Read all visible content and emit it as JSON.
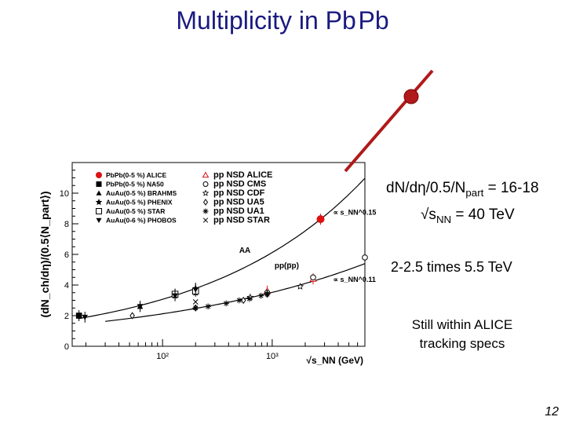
{
  "slide": {
    "title": "Multiplicity in Pb Pb",
    "page_number": "12",
    "note_line1_pre": "dN/dη/0.5/N",
    "note_line1_sub": "part",
    "note_line1_post": " = 16-18",
    "note_line2_pre": "√s",
    "note_line2_sub": "NN",
    "note_line2_post": " = 40 TeV",
    "note_range": "2-2.5 times 5.5 TeV",
    "note_specs": "Still within ALICE tracking specs",
    "accent_color": "#b01a1a",
    "title_color": "#1a1a80"
  },
  "chart_data": {
    "type": "scatter",
    "ylabel": "(dN_ch/dη)/(0.5⟨N_part⟩)",
    "xlabel": "√s_NN (GeV)",
    "xscale": "log",
    "xlim": [
      15,
      7000
    ],
    "ylim": [
      0,
      12
    ],
    "yticks": [
      "0",
      "2",
      "4",
      "6",
      "8",
      "10"
    ],
    "xticks": [
      "10²",
      "10³"
    ],
    "annotations": [
      "AA",
      "pp(p̅p)",
      "∝ s_NN^0.15",
      "∝ s_NN^0.11"
    ],
    "legend_left": [
      {
        "label": "PbPb(0-5 %) ALICE",
        "marker": "circle-filled",
        "color": "#dd1111"
      },
      {
        "label": "PbPb(0-5 %) NA50",
        "marker": "square-filled",
        "color": "#000000"
      },
      {
        "label": "AuAu(0-5 %) BRAHMS",
        "marker": "triangle-up-filled",
        "color": "#000000"
      },
      {
        "label": "AuAu(0-5 %) PHENIX",
        "marker": "star-filled",
        "color": "#000000"
      },
      {
        "label": "AuAu(0-5 %) STAR",
        "marker": "square-open",
        "color": "#000000"
      },
      {
        "label": "AuAu(0-6 %) PHOBOS",
        "marker": "triangle-down-filled",
        "color": "#000000"
      }
    ],
    "legend_right": [
      {
        "label": "pp NSD ALICE",
        "marker": "triangle-up-open",
        "color": "#dd1111"
      },
      {
        "label": "pp NSD CMS",
        "marker": "circle-open",
        "color": "#000000"
      },
      {
        "label": "pp NSD CDF",
        "marker": "star-open",
        "color": "#000000"
      },
      {
        "label": "pp NSD UA5",
        "marker": "diamond-open",
        "color": "#000000"
      },
      {
        "label": "pp NSD UA1",
        "marker": "asterisk",
        "color": "#000000"
      },
      {
        "label": "pp NSD STAR",
        "marker": "cross",
        "color": "#000000"
      }
    ],
    "series": [
      {
        "name": "PbPb(0-5 %) ALICE",
        "marker": "circle-filled",
        "color": "#dd1111",
        "x": [
          2760
        ],
        "y": [
          8.3
        ]
      },
      {
        "name": "PbPb(0-5 %) NA50",
        "marker": "square-filled",
        "color": "#000000",
        "x": [
          17.3
        ],
        "y": [
          2.0
        ]
      },
      {
        "name": "AuAu(0-5 %) BRAHMS",
        "marker": "triangle-up-filled",
        "color": "#000000",
        "x": [
          62.4,
          130,
          200
        ],
        "y": [
          2.6,
          3.4,
          3.8
        ]
      },
      {
        "name": "AuAu(0-5 %) PHENIX",
        "marker": "star-filled",
        "color": "#000000",
        "x": [
          130,
          200
        ],
        "y": [
          3.3,
          3.5
        ]
      },
      {
        "name": "AuAu(0-5 %) STAR",
        "marker": "square-open",
        "color": "#000000",
        "x": [
          130,
          200
        ],
        "y": [
          3.4,
          3.6
        ]
      },
      {
        "name": "AuAu(0-6 %) PHOBOS",
        "marker": "triangle-down-filled",
        "color": "#000000",
        "x": [
          19.6,
          62.4,
          130,
          200
        ],
        "y": [
          1.9,
          2.6,
          3.3,
          3.7
        ]
      },
      {
        "name": "pp NSD ALICE",
        "marker": "triangle-up-open",
        "color": "#dd1111",
        "x": [
          900,
          2360
        ],
        "y": [
          3.6,
          4.4
        ]
      },
      {
        "name": "pp NSD CMS",
        "marker": "circle-open",
        "color": "#000000",
        "x": [
          900,
          2360,
          7000
        ],
        "y": [
          3.5,
          4.5,
          5.8
        ]
      },
      {
        "name": "pp NSD CDF",
        "marker": "star-open",
        "color": "#000000",
        "x": [
          630,
          1800
        ],
        "y": [
          3.2,
          3.9
        ]
      },
      {
        "name": "pp NSD UA5",
        "marker": "diamond-open",
        "color": "#000000",
        "x": [
          53,
          200,
          546,
          900
        ],
        "y": [
          2.0,
          2.5,
          3.0,
          3.4
        ]
      },
      {
        "name": "pp NSD UA1",
        "marker": "asterisk",
        "color": "#000000",
        "x": [
          200,
          260,
          380,
          500,
          620,
          790,
          900
        ],
        "y": [
          2.5,
          2.6,
          2.8,
          3.0,
          3.1,
          3.3,
          3.4
        ]
      },
      {
        "name": "pp NSD STAR",
        "marker": "cross",
        "color": "#000000",
        "x": [
          200
        ],
        "y": [
          2.9
        ]
      }
    ],
    "fits": [
      {
        "name": "AA",
        "formula": "a*s^0.15",
        "x": [
          17,
          2760
        ],
        "y": [
          1.9,
          8.3
        ]
      },
      {
        "name": "pp",
        "formula": "a*s^0.11",
        "x": [
          30,
          2760
        ],
        "y": [
          1.9,
          4.4
        ]
      }
    ],
    "extrapolation_point": {
      "x": 40000,
      "y": 17
    }
  }
}
